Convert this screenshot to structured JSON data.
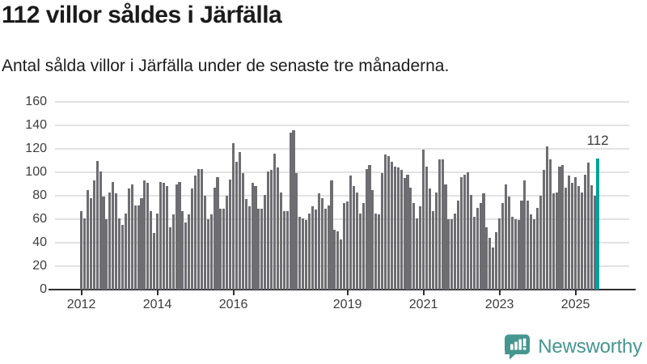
{
  "header": {
    "title": "112 villor såldes i Järfälla",
    "subtitle": "Antal sålda villor i Järfälla under de senaste tre månaderna."
  },
  "chart_data": {
    "type": "bar",
    "title": "112 villor såldes i Järfälla",
    "subtitle": "Antal sålda villor i Järfälla under de senaste tre månaderna.",
    "x_unit": "month",
    "x_range": "2012 – 2025",
    "ylim": [
      0,
      160
    ],
    "grid": "horizontal",
    "y_ticks": [
      0,
      20,
      40,
      60,
      80,
      100,
      120,
      140,
      160
    ],
    "x_ticks": [
      {
        "index": 0,
        "label": "2012"
      },
      {
        "index": 24,
        "label": "2014"
      },
      {
        "index": 48,
        "label": "2016"
      },
      {
        "index": 84,
        "label": "2019"
      },
      {
        "index": 108,
        "label": "2021"
      },
      {
        "index": 132,
        "label": "2023"
      },
      {
        "index": 156,
        "label": "2025"
      }
    ],
    "values": [
      67,
      61,
      85,
      78,
      93,
      110,
      101,
      79,
      60,
      83,
      92,
      82,
      61,
      55,
      65,
      86,
      90,
      72,
      72,
      78,
      93,
      91,
      67,
      48,
      65,
      92,
      91,
      88,
      53,
      64,
      90,
      92,
      67,
      57,
      64,
      86,
      97,
      103,
      103,
      80,
      60,
      64,
      87,
      96,
      69,
      69,
      80,
      94,
      125,
      109,
      117,
      99,
      77,
      71,
      91,
      88,
      69,
      69,
      81,
      101,
      102,
      116,
      104,
      83,
      67,
      67,
      134,
      136,
      99,
      62,
      61,
      59,
      65,
      71,
      68,
      82,
      78,
      69,
      72,
      93,
      51,
      50,
      43,
      74,
      75,
      97,
      88,
      83,
      65,
      74,
      103,
      106,
      85,
      65,
      64,
      99,
      115,
      114,
      109,
      105,
      104,
      102,
      95,
      98,
      87,
      74,
      61,
      71,
      119,
      105,
      86,
      67,
      83,
      111,
      111,
      90,
      60,
      60,
      65,
      76,
      96,
      98,
      100,
      81,
      62,
      70,
      74,
      82,
      53,
      44,
      36,
      49,
      61,
      74,
      90,
      79,
      62,
      60,
      59,
      76,
      93,
      76,
      64,
      60,
      70,
      80,
      102,
      122,
      111,
      82,
      83,
      105,
      106,
      87,
      97,
      91,
      96,
      88,
      83,
      98,
      108,
      89,
      80,
      112
    ],
    "highlight": {
      "position": "last",
      "value": 112,
      "label": "112",
      "color": "#00a19c"
    },
    "bar_color": "#6d6d72",
    "gridline_color": "#e2e2e2",
    "axis_color": "#2e2e2e"
  },
  "footer": {
    "brand": "Newsworthy",
    "brand_color": "#45968f"
  }
}
